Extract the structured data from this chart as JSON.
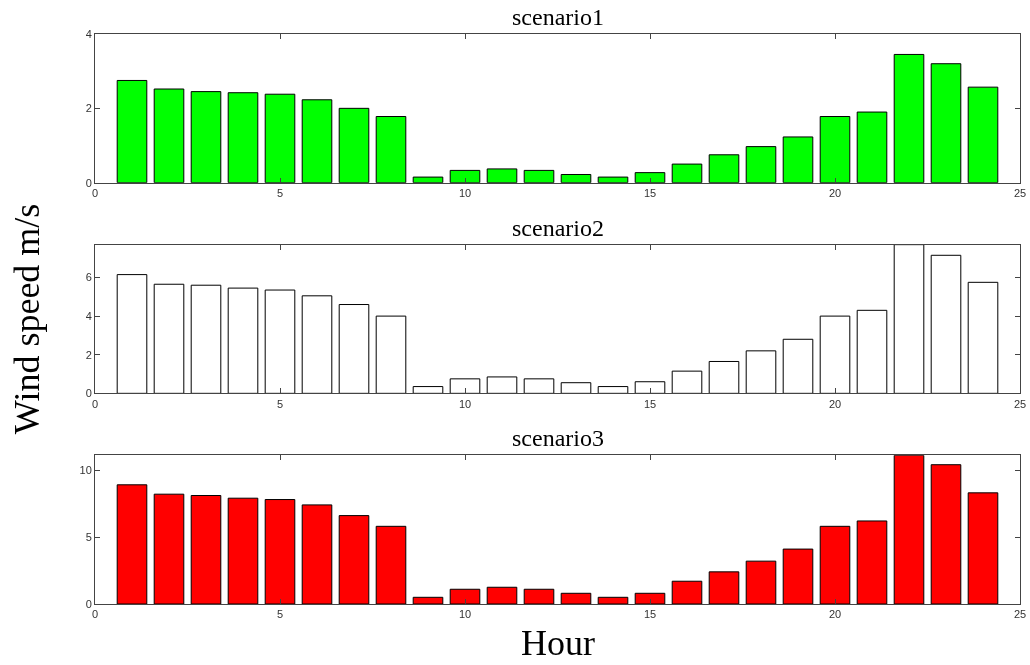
{
  "chart_data": [
    {
      "type": "bar",
      "title": "scenario1",
      "x": [
        1,
        2,
        3,
        4,
        5,
        6,
        7,
        8,
        9,
        10,
        11,
        12,
        13,
        14,
        15,
        16,
        17,
        18,
        19,
        20,
        21,
        22,
        23,
        24
      ],
      "series": [
        {
          "color": "#00ff00",
          "values": [
            2.75,
            2.52,
            2.45,
            2.42,
            2.38,
            2.23,
            2.0,
            1.78,
            0.15,
            0.33,
            0.37,
            0.33,
            0.22,
            0.15,
            0.27,
            0.5,
            0.75,
            0.97,
            1.23,
            1.78,
            1.9,
            3.45,
            3.2,
            2.57
          ]
        }
      ],
      "xlim": [
        0,
        25
      ],
      "xticks": [
        0,
        5,
        10,
        15,
        20,
        25
      ],
      "ylim": [
        0,
        4
      ],
      "yticks": [
        0,
        2,
        4
      ]
    },
    {
      "type": "bar",
      "title": "scenario2",
      "ylabel": "Wind speed m/s",
      "x": [
        1,
        2,
        3,
        4,
        5,
        6,
        7,
        8,
        9,
        10,
        11,
        12,
        13,
        14,
        15,
        16,
        17,
        18,
        19,
        20,
        21,
        22,
        23,
        24
      ],
      "series": [
        {
          "color": "#ffffff",
          "values": [
            6.15,
            5.65,
            5.6,
            5.45,
            5.35,
            5.05,
            4.6,
            4.0,
            0.35,
            0.75,
            0.85,
            0.75,
            0.55,
            0.35,
            0.6,
            1.15,
            1.65,
            2.2,
            2.8,
            4.0,
            4.3,
            7.7,
            7.15,
            5.75
          ]
        }
      ],
      "xlim": [
        0,
        25
      ],
      "xticks": [
        0,
        5,
        10,
        15,
        20,
        25
      ],
      "ylim": [
        0,
        7.7
      ],
      "yticks": [
        0,
        2,
        4,
        6
      ]
    },
    {
      "type": "bar",
      "title": "scenario3",
      "xlabel": "Hour",
      "x": [
        1,
        2,
        3,
        4,
        5,
        6,
        7,
        8,
        9,
        10,
        11,
        12,
        13,
        14,
        15,
        16,
        17,
        18,
        19,
        20,
        21,
        22,
        23,
        24
      ],
      "series": [
        {
          "color": "#ff0000",
          "values": [
            8.9,
            8.2,
            8.1,
            7.9,
            7.8,
            7.4,
            6.6,
            5.8,
            0.5,
            1.1,
            1.25,
            1.1,
            0.8,
            0.5,
            0.8,
            1.7,
            2.4,
            3.2,
            4.1,
            5.8,
            6.2,
            11.1,
            10.4,
            8.3
          ]
        }
      ],
      "xlim": [
        0,
        25
      ],
      "xticks": [
        0,
        5,
        10,
        15,
        20,
        25
      ],
      "ylim": [
        0,
        11.1
      ],
      "yticks": [
        0,
        5,
        10
      ]
    }
  ]
}
